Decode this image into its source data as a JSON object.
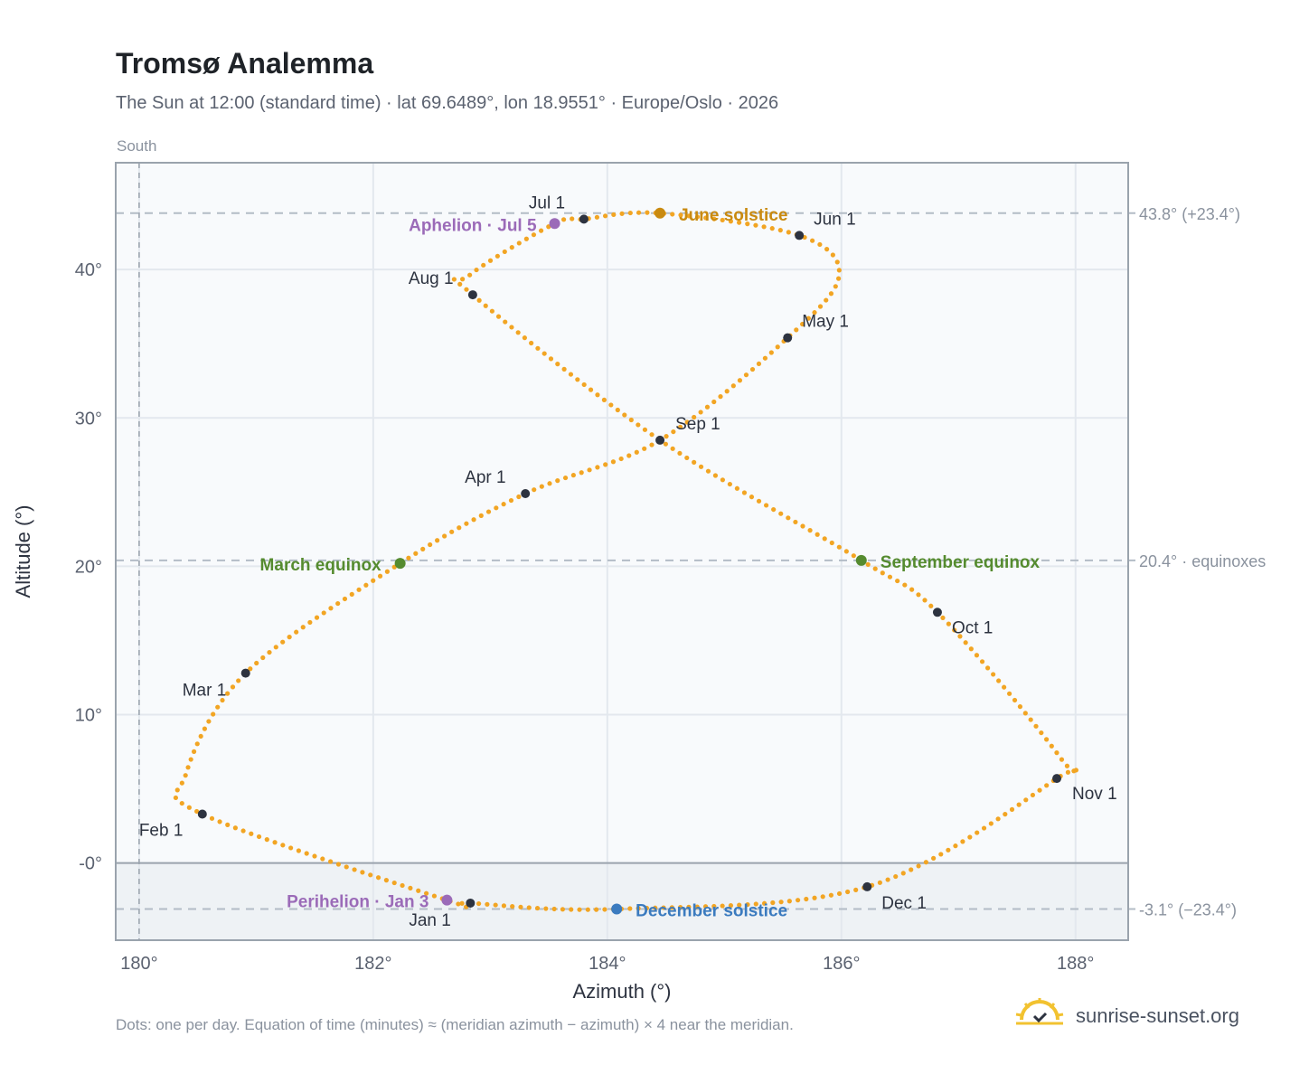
{
  "header": {
    "title": "Tromsø Analemma",
    "subtitle": "The Sun at 12:00 (standard time) · lat 69.6489°, lon 18.9551° · Europe/Oslo · 2026"
  },
  "footer": {
    "note": "Dots: one per day. Equation of time (minutes) ≈ (meridian azimuth − azimuth) × 4 near the meridian.",
    "brand": "sunrise-sunset.org"
  },
  "chart_data": {
    "type": "scatter",
    "xlabel": "Azimuth (°)",
    "ylabel": "Altitude (°)",
    "xlim": [
      179.8,
      188.45
    ],
    "ylim": [
      -5.2,
      47.2
    ],
    "x_ticks": [
      {
        "value": 180,
        "label": "180°"
      },
      {
        "value": 182,
        "label": "182°"
      },
      {
        "value": 184,
        "label": "184°"
      },
      {
        "value": 186,
        "label": "186°"
      },
      {
        "value": 188,
        "label": "188°"
      }
    ],
    "y_ticks": [
      {
        "value": 0,
        "label": "-0°"
      },
      {
        "value": 10,
        "label": "10°"
      },
      {
        "value": 20,
        "label": "20°"
      },
      {
        "value": 30,
        "label": "30°"
      },
      {
        "value": 40,
        "label": "40°"
      }
    ],
    "grid": true,
    "meridian": {
      "value": 180,
      "label": "South"
    },
    "reference_lines": [
      {
        "value": 43.8,
        "label": "43.8° (+23.4°)"
      },
      {
        "value": 20.4,
        "label": "20.4° · equinoxes"
      },
      {
        "value": -3.1,
        "label": "-3.1° (−23.4°)"
      }
    ],
    "month_points": [
      {
        "label": "Jan 1",
        "x": 182.83,
        "y": -2.7
      },
      {
        "label": "Feb 1",
        "x": 180.54,
        "y": 3.3
      },
      {
        "label": "Mar 1",
        "x": 180.91,
        "y": 12.8
      },
      {
        "label": "Apr 1",
        "x": 183.3,
        "y": 24.9
      },
      {
        "label": "May 1",
        "x": 185.54,
        "y": 35.4
      },
      {
        "label": "Jun 1",
        "x": 185.64,
        "y": 42.3
      },
      {
        "label": "Jul 1",
        "x": 183.8,
        "y": 43.4
      },
      {
        "label": "Aug 1",
        "x": 182.85,
        "y": 38.3
      },
      {
        "label": "Sep 1",
        "x": 184.45,
        "y": 28.5
      },
      {
        "label": "Oct 1",
        "x": 186.82,
        "y": 16.9
      },
      {
        "label": "Nov 1",
        "x": 187.84,
        "y": 5.7
      },
      {
        "label": "Dec 1",
        "x": 186.22,
        "y": -1.6
      }
    ],
    "events": [
      {
        "label": "Perihelion · Jan 3",
        "x": 182.63,
        "y": -2.5,
        "color": "#9b6bb8"
      },
      {
        "label": "March equinox",
        "x": 182.23,
        "y": 20.2,
        "color": "#558b2f"
      },
      {
        "label": "Aphelion · Jul 5",
        "x": 183.55,
        "y": 43.1,
        "color": "#9b6bb8"
      },
      {
        "label": "June solstice",
        "x": 184.45,
        "y": 43.8,
        "color": "#c98a10"
      },
      {
        "label": "September equinox",
        "x": 186.17,
        "y": 20.4,
        "color": "#558b2f"
      },
      {
        "label": "December solstice",
        "x": 184.08,
        "y": -3.1,
        "color": "#3b7bbf"
      }
    ],
    "curve_color": "#f2a523",
    "series": [
      {
        "values": [
          [
            182.83,
            -2.7
          ],
          [
            182.63,
            -2.5
          ],
          [
            180.54,
            3.3
          ],
          [
            180.4,
            6.0
          ],
          [
            180.91,
            12.8
          ],
          [
            182.23,
            20.2
          ],
          [
            183.3,
            24.9
          ],
          [
            184.45,
            28.5
          ],
          [
            185.54,
            35.4
          ],
          [
            185.98,
            39.6
          ],
          [
            185.64,
            42.3
          ],
          [
            184.45,
            43.8
          ],
          [
            183.8,
            43.4
          ],
          [
            183.55,
            43.1
          ],
          [
            182.82,
            39.6
          ],
          [
            182.85,
            38.3
          ],
          [
            184.45,
            28.5
          ],
          [
            186.17,
            20.4
          ],
          [
            186.82,
            16.9
          ],
          [
            187.88,
            7.0
          ],
          [
            187.84,
            5.7
          ],
          [
            186.22,
            -1.6
          ],
          [
            184.08,
            -3.1
          ]
        ]
      }
    ]
  }
}
